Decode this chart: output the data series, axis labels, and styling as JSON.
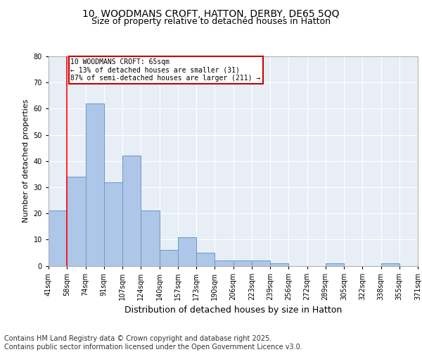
{
  "title_line1": "10, WOODMANS CROFT, HATTON, DERBY, DE65 5QQ",
  "title_line2": "Size of property relative to detached houses in Hatton",
  "xlabel": "Distribution of detached houses by size in Hatton",
  "ylabel": "Number of detached properties",
  "bar_values": [
    21,
    34,
    62,
    32,
    42,
    21,
    6,
    11,
    5,
    2,
    2,
    2,
    1,
    0,
    0,
    1,
    0,
    0,
    1,
    0
  ],
  "bin_labels": [
    "41sqm",
    "58sqm",
    "74sqm",
    "91sqm",
    "107sqm",
    "124sqm",
    "140sqm",
    "157sqm",
    "173sqm",
    "190sqm",
    "206sqm",
    "223sqm",
    "239sqm",
    "256sqm",
    "272sqm",
    "289sqm",
    "305sqm",
    "322sqm",
    "338sqm",
    "355sqm",
    "371sqm"
  ],
  "bar_color": "#aec6e8",
  "bar_edge_color": "#6699cc",
  "background_color": "#e8eef5",
  "grid_color": "#ffffff",
  "annotation_line1": "10 WOODMANS CROFT: 65sqm",
  "annotation_line2": "← 13% of detached houses are smaller (31)",
  "annotation_line3": "87% of semi-detached houses are larger (211) →",
  "annotation_box_color": "#cc0000",
  "red_line_x": 1.0,
  "ylim": [
    0,
    80
  ],
  "yticks": [
    0,
    10,
    20,
    30,
    40,
    50,
    60,
    70,
    80
  ],
  "footer_text": "Contains HM Land Registry data © Crown copyright and database right 2025.\nContains public sector information licensed under the Open Government Licence v3.0.",
  "footer_fontsize": 7,
  "title_fontsize1": 10,
  "title_fontsize2": 9,
  "axis_label_fontsize": 8,
  "tick_fontsize": 7
}
